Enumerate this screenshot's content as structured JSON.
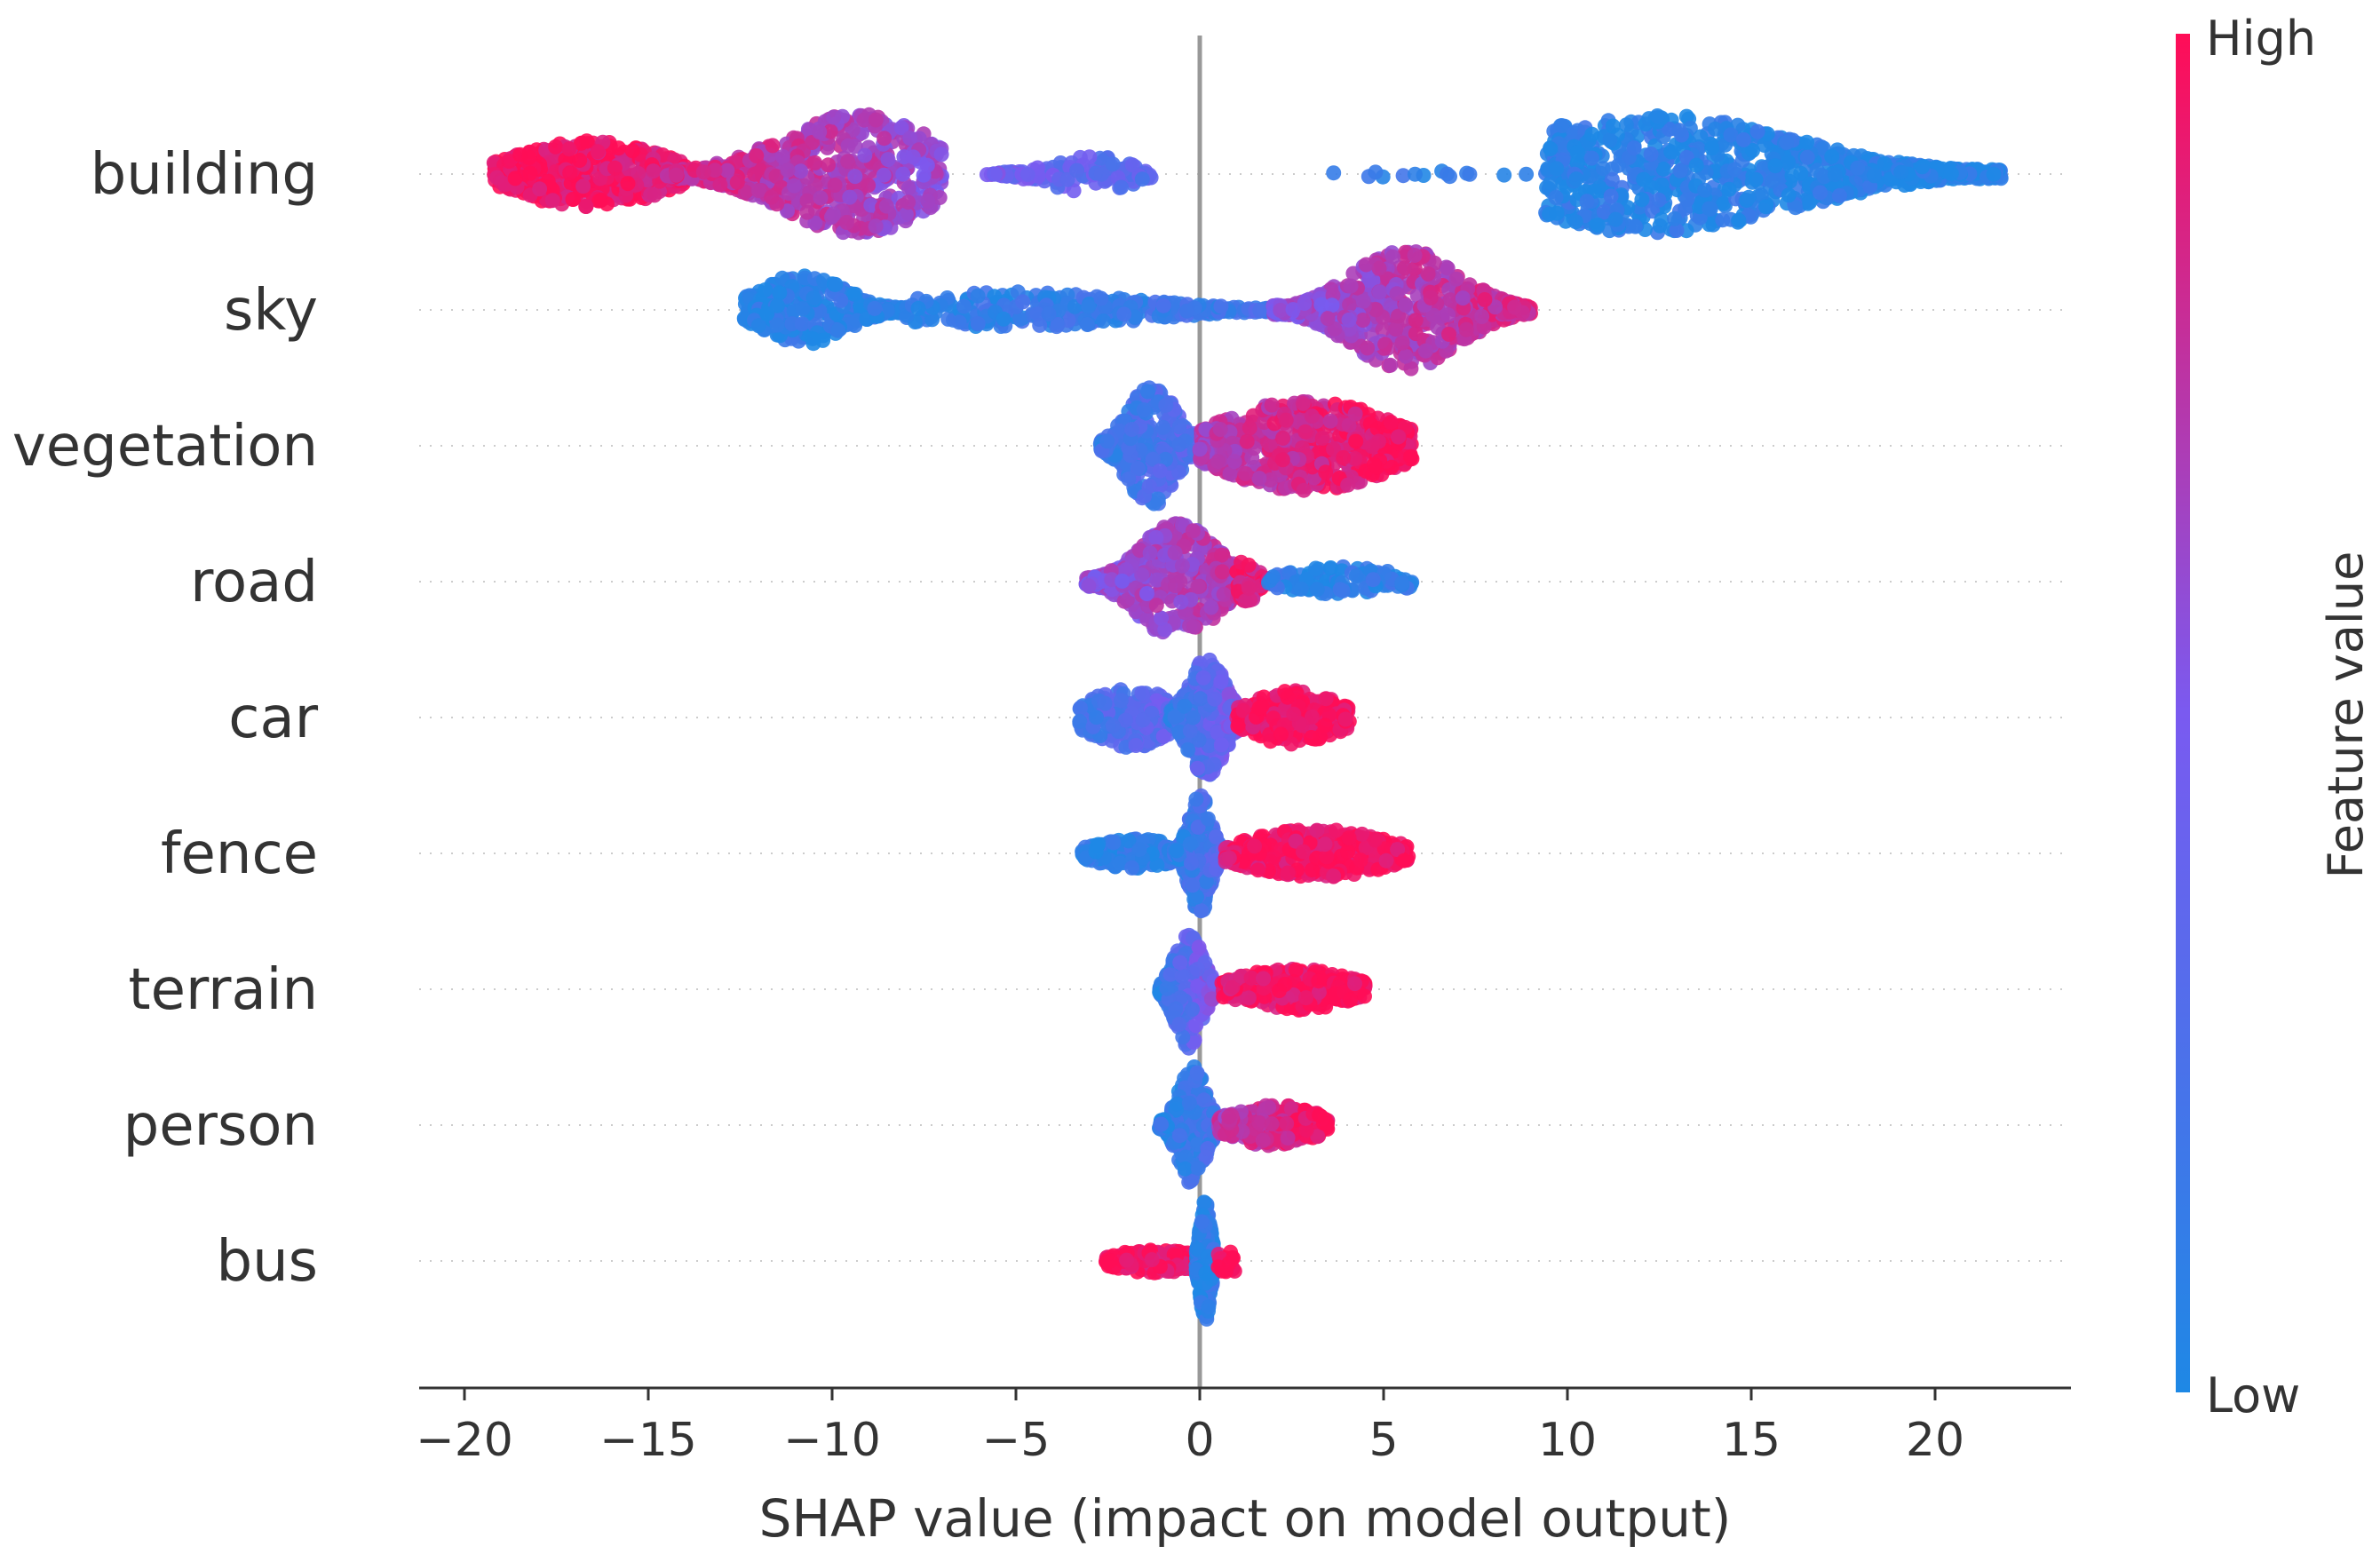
{
  "chart_data": {
    "type": "scatter",
    "subtype": "beeswarm",
    "title": "",
    "xlabel": "SHAP value (impact on model output)",
    "xlim": [
      -21.5,
      23.5
    ],
    "xticks": [
      -20,
      -15,
      -10,
      -5,
      0,
      5,
      10,
      15,
      20
    ],
    "xtick_labels": [
      "−20",
      "−15",
      "−10",
      "−5",
      "0",
      "5",
      "10",
      "15",
      "20"
    ],
    "zero_line": true,
    "row_gridlines": "dotted",
    "colorbar": {
      "title": "Feature value",
      "high_label": "High",
      "low_label": "Low",
      "high_color": "#ff0d57",
      "low_color": "#1e88e5"
    },
    "features": [
      {
        "name": "building",
        "segments": [
          {
            "from": -19.2,
            "to": -14.0,
            "c0": 1.0,
            "c1": 0.9,
            "n": 460,
            "shape": "ramp",
            "h": 0.55
          },
          {
            "from": -14.5,
            "to": -7.0,
            "c0": 0.85,
            "c1": 0.6,
            "n": 620,
            "shape": "hump2",
            "peak": -9.3,
            "h": 1.0
          },
          {
            "from": -5.8,
            "to": -1.3,
            "c0": 0.45,
            "c1": 0.3,
            "n": 120,
            "shape": "hump",
            "peak": -3.0,
            "h": 0.3
          },
          {
            "from": 3.5,
            "to": 9.0,
            "c0": 0.1,
            "c1": 0.1,
            "n": 14,
            "shape": "flat",
            "h": 0.05
          },
          {
            "from": 9.4,
            "to": 21.8,
            "c0": 0.08,
            "c1": 0.02,
            "n": 900,
            "shape": "hump",
            "peak": 12.3,
            "h": 1.0
          }
        ]
      },
      {
        "name": "sky",
        "segments": [
          {
            "from": -12.4,
            "to": -8.0,
            "c0": 0.05,
            "c1": 0.08,
            "n": 320,
            "shape": "hump",
            "peak": -10.8,
            "h": 0.6
          },
          {
            "from": -8.0,
            "to": 3.0,
            "c0": 0.08,
            "c1": 0.2,
            "n": 300,
            "shape": "hump",
            "peak": -5.0,
            "h": 0.3
          },
          {
            "from": 2.0,
            "to": 9.0,
            "c0": 0.55,
            "c1": 0.85,
            "n": 700,
            "shape": "hump2",
            "peak": 5.6,
            "h": 1.0
          }
        ]
      },
      {
        "name": "vegetation",
        "segments": [
          {
            "from": -2.7,
            "to": 0.3,
            "c0": 0.15,
            "c1": 0.35,
            "n": 360,
            "shape": "hump",
            "peak": -1.3,
            "h": 1.0
          },
          {
            "from": 0.0,
            "to": 5.8,
            "c0": 0.7,
            "c1": 1.0,
            "n": 560,
            "shape": "ramp",
            "h": 0.75
          }
        ]
      },
      {
        "name": "road",
        "segments": [
          {
            "from": -3.1,
            "to": 1.5,
            "c0": 0.55,
            "c1": 0.75,
            "n": 560,
            "shape": "hump",
            "peak": -0.6,
            "h": 1.0
          },
          {
            "from": 1.0,
            "to": 2.0,
            "c0": 0.9,
            "c1": 0.9,
            "n": 60,
            "shape": "hump",
            "peak": 1.2,
            "h": 0.4
          },
          {
            "from": 1.8,
            "to": 5.8,
            "c0": 0.1,
            "c1": 0.08,
            "n": 110,
            "shape": "ramp",
            "h": 0.25
          }
        ]
      },
      {
        "name": "car",
        "segments": [
          {
            "from": -3.3,
            "to": -0.5,
            "c0": 0.2,
            "c1": 0.4,
            "n": 200,
            "shape": "ramp",
            "h": 0.5
          },
          {
            "from": -0.8,
            "to": 1.4,
            "c0": 0.15,
            "c1": 0.55,
            "n": 420,
            "shape": "hump",
            "peak": 0.2,
            "h": 1.0
          },
          {
            "from": 1.0,
            "to": 4.1,
            "c0": 0.95,
            "c1": 1.0,
            "n": 260,
            "shape": "ramp",
            "h": 0.45
          }
        ]
      },
      {
        "name": "fence",
        "segments": [
          {
            "from": -3.2,
            "to": -0.4,
            "c0": 0.05,
            "c1": 0.1,
            "n": 200,
            "shape": "ramp",
            "h": 0.25
          },
          {
            "from": -0.7,
            "to": 0.7,
            "c0": 0.1,
            "c1": 0.3,
            "n": 380,
            "shape": "hump",
            "peak": 0.0,
            "h": 1.0
          },
          {
            "from": 0.7,
            "to": 5.7,
            "c0": 0.95,
            "c1": 1.0,
            "n": 420,
            "shape": "ramp",
            "h": 0.4
          }
        ]
      },
      {
        "name": "terrain",
        "segments": [
          {
            "from": -1.1,
            "to": 0.6,
            "c0": 0.1,
            "c1": 0.6,
            "n": 300,
            "shape": "hump",
            "peak": -0.3,
            "h": 1.0
          },
          {
            "from": 0.6,
            "to": 4.5,
            "c0": 0.95,
            "c1": 1.0,
            "n": 330,
            "shape": "ramp",
            "h": 0.35
          }
        ]
      },
      {
        "name": "person",
        "segments": [
          {
            "from": -1.1,
            "to": 0.5,
            "c0": 0.08,
            "c1": 0.2,
            "n": 240,
            "shape": "hump",
            "peak": -0.2,
            "h": 1.0
          },
          {
            "from": 0.5,
            "to": 3.5,
            "c0": 0.7,
            "c1": 1.0,
            "n": 260,
            "shape": "ramp",
            "h": 0.35
          }
        ]
      },
      {
        "name": "bus",
        "segments": [
          {
            "from": -2.6,
            "to": 0.2,
            "c0": 1.0,
            "c1": 0.95,
            "n": 200,
            "shape": "ramp",
            "h": 0.2
          },
          {
            "from": -0.1,
            "to": 0.5,
            "c0": 0.05,
            "c1": 0.1,
            "n": 260,
            "shape": "hump",
            "peak": 0.15,
            "h": 1.0
          },
          {
            "from": 0.5,
            "to": 1.0,
            "c0": 1.0,
            "c1": 1.0,
            "n": 20,
            "shape": "flat",
            "h": 0.2
          }
        ]
      }
    ]
  }
}
